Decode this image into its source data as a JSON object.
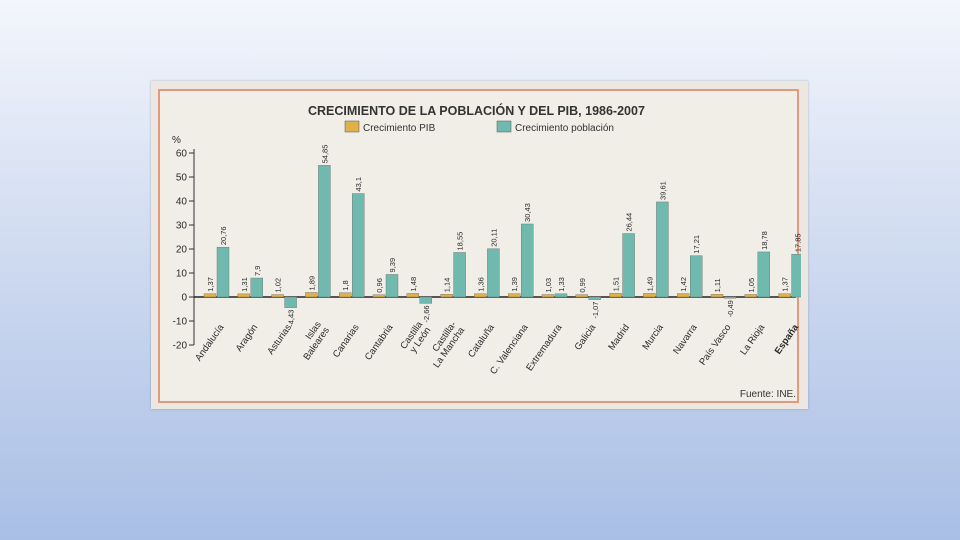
{
  "chart_data": {
    "type": "bar",
    "title": "CRECIMIENTO DE LA POBLACIÓN Y DEL PIB, 1986-2007",
    "ylabel": "%",
    "xlabel": "",
    "ylim": [
      -20,
      60
    ],
    "yticks": [
      60,
      50,
      40,
      30,
      20,
      10,
      0,
      -10,
      -20
    ],
    "ytick_labels": [
      "60",
      "50",
      "40",
      "30",
      "20",
      "10",
      "0",
      "-10",
      "-20"
    ],
    "grid": false,
    "legend": "top",
    "categories": [
      [
        "Andalucía"
      ],
      [
        "Aragón"
      ],
      [
        "Asturias"
      ],
      [
        "Islas",
        "Baleares"
      ],
      [
        "Canarias"
      ],
      [
        "Cantabria"
      ],
      [
        "Castilla",
        "y León"
      ],
      [
        "Castilla-",
        "La Mancha"
      ],
      [
        "Cataluña"
      ],
      [
        "C. Valenciana"
      ],
      [
        "Extremadura"
      ],
      [
        "Galicia"
      ],
      [
        "Madrid"
      ],
      [
        "Murcia"
      ],
      [
        "Navarra"
      ],
      [
        "País Vasco"
      ],
      [
        "La Rioja"
      ],
      [
        "España"
      ]
    ],
    "bold_categories": [
      17
    ],
    "series": [
      {
        "name": "Crecimiento PIB",
        "color": "#e0b04a",
        "values": [
          1.37,
          1.31,
          1.02,
          1.89,
          1.8,
          0.96,
          1.48,
          1.14,
          1.36,
          1.39,
          1.03,
          0.99,
          1.51,
          1.49,
          1.42,
          1.11,
          1.05,
          1.37
        ],
        "labels": [
          "1,37",
          "1,31",
          "1,02",
          "1,89",
          "1,8",
          "0,96",
          "1,48",
          "1,14",
          "1,36",
          "1,39",
          "1,03",
          "0,99",
          "1,51",
          "1,49",
          "1,42",
          "1,11",
          "1,05",
          "1,37"
        ]
      },
      {
        "name": "Crecimiento población",
        "color": "#6fb9ae",
        "values": [
          20.76,
          7.9,
          -4.43,
          54.85,
          43.1,
          9.39,
          -2.66,
          18.55,
          20.11,
          30.43,
          1.33,
          -1.07,
          26.44,
          39.61,
          17.21,
          -0.49,
          18.78,
          17.85
        ],
        "labels": [
          "20,76",
          "7,9",
          "-4,43",
          "54,85",
          "43,1",
          "9,39",
          "-2,66",
          "18,55",
          "20,11",
          "30,43",
          "1,33",
          "-1,07",
          "26,44",
          "39,61",
          "17,21",
          "-0,49",
          "18,78",
          "17,85"
        ]
      }
    ],
    "source": "Fuente: INE."
  }
}
